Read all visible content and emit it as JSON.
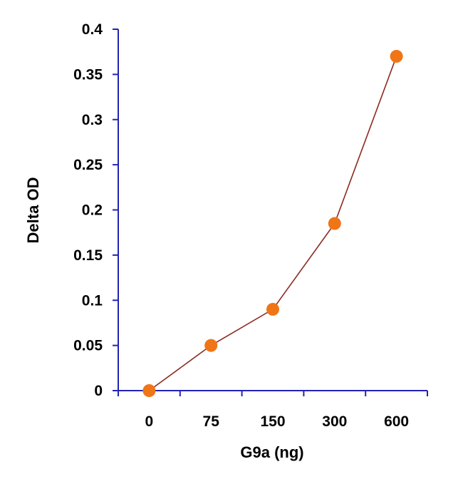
{
  "chart_data": {
    "type": "line",
    "title": "",
    "xlabel": "G9a (ng)",
    "ylabel": "Delta OD",
    "categories": [
      "0",
      "75",
      "150",
      "300",
      "600"
    ],
    "series": [
      {
        "values": [
          0,
          0.05,
          0.09,
          0.185,
          0.37
        ]
      }
    ],
    "ylim": [
      0,
      0.4
    ],
    "yticks": [
      0,
      0.05,
      0.1,
      0.15,
      0.2,
      0.25,
      0.3,
      0.35,
      0.4
    ],
    "ytick_labels": [
      "0",
      "0.05",
      "0.1",
      "0.15",
      "0.2",
      "0.25",
      "0.3",
      "0.35",
      "0.4"
    ],
    "grid": false,
    "legend": "none",
    "colors": {
      "axis": "#2323b3",
      "line": "#8b2a1e",
      "marker": "#f07516"
    }
  }
}
